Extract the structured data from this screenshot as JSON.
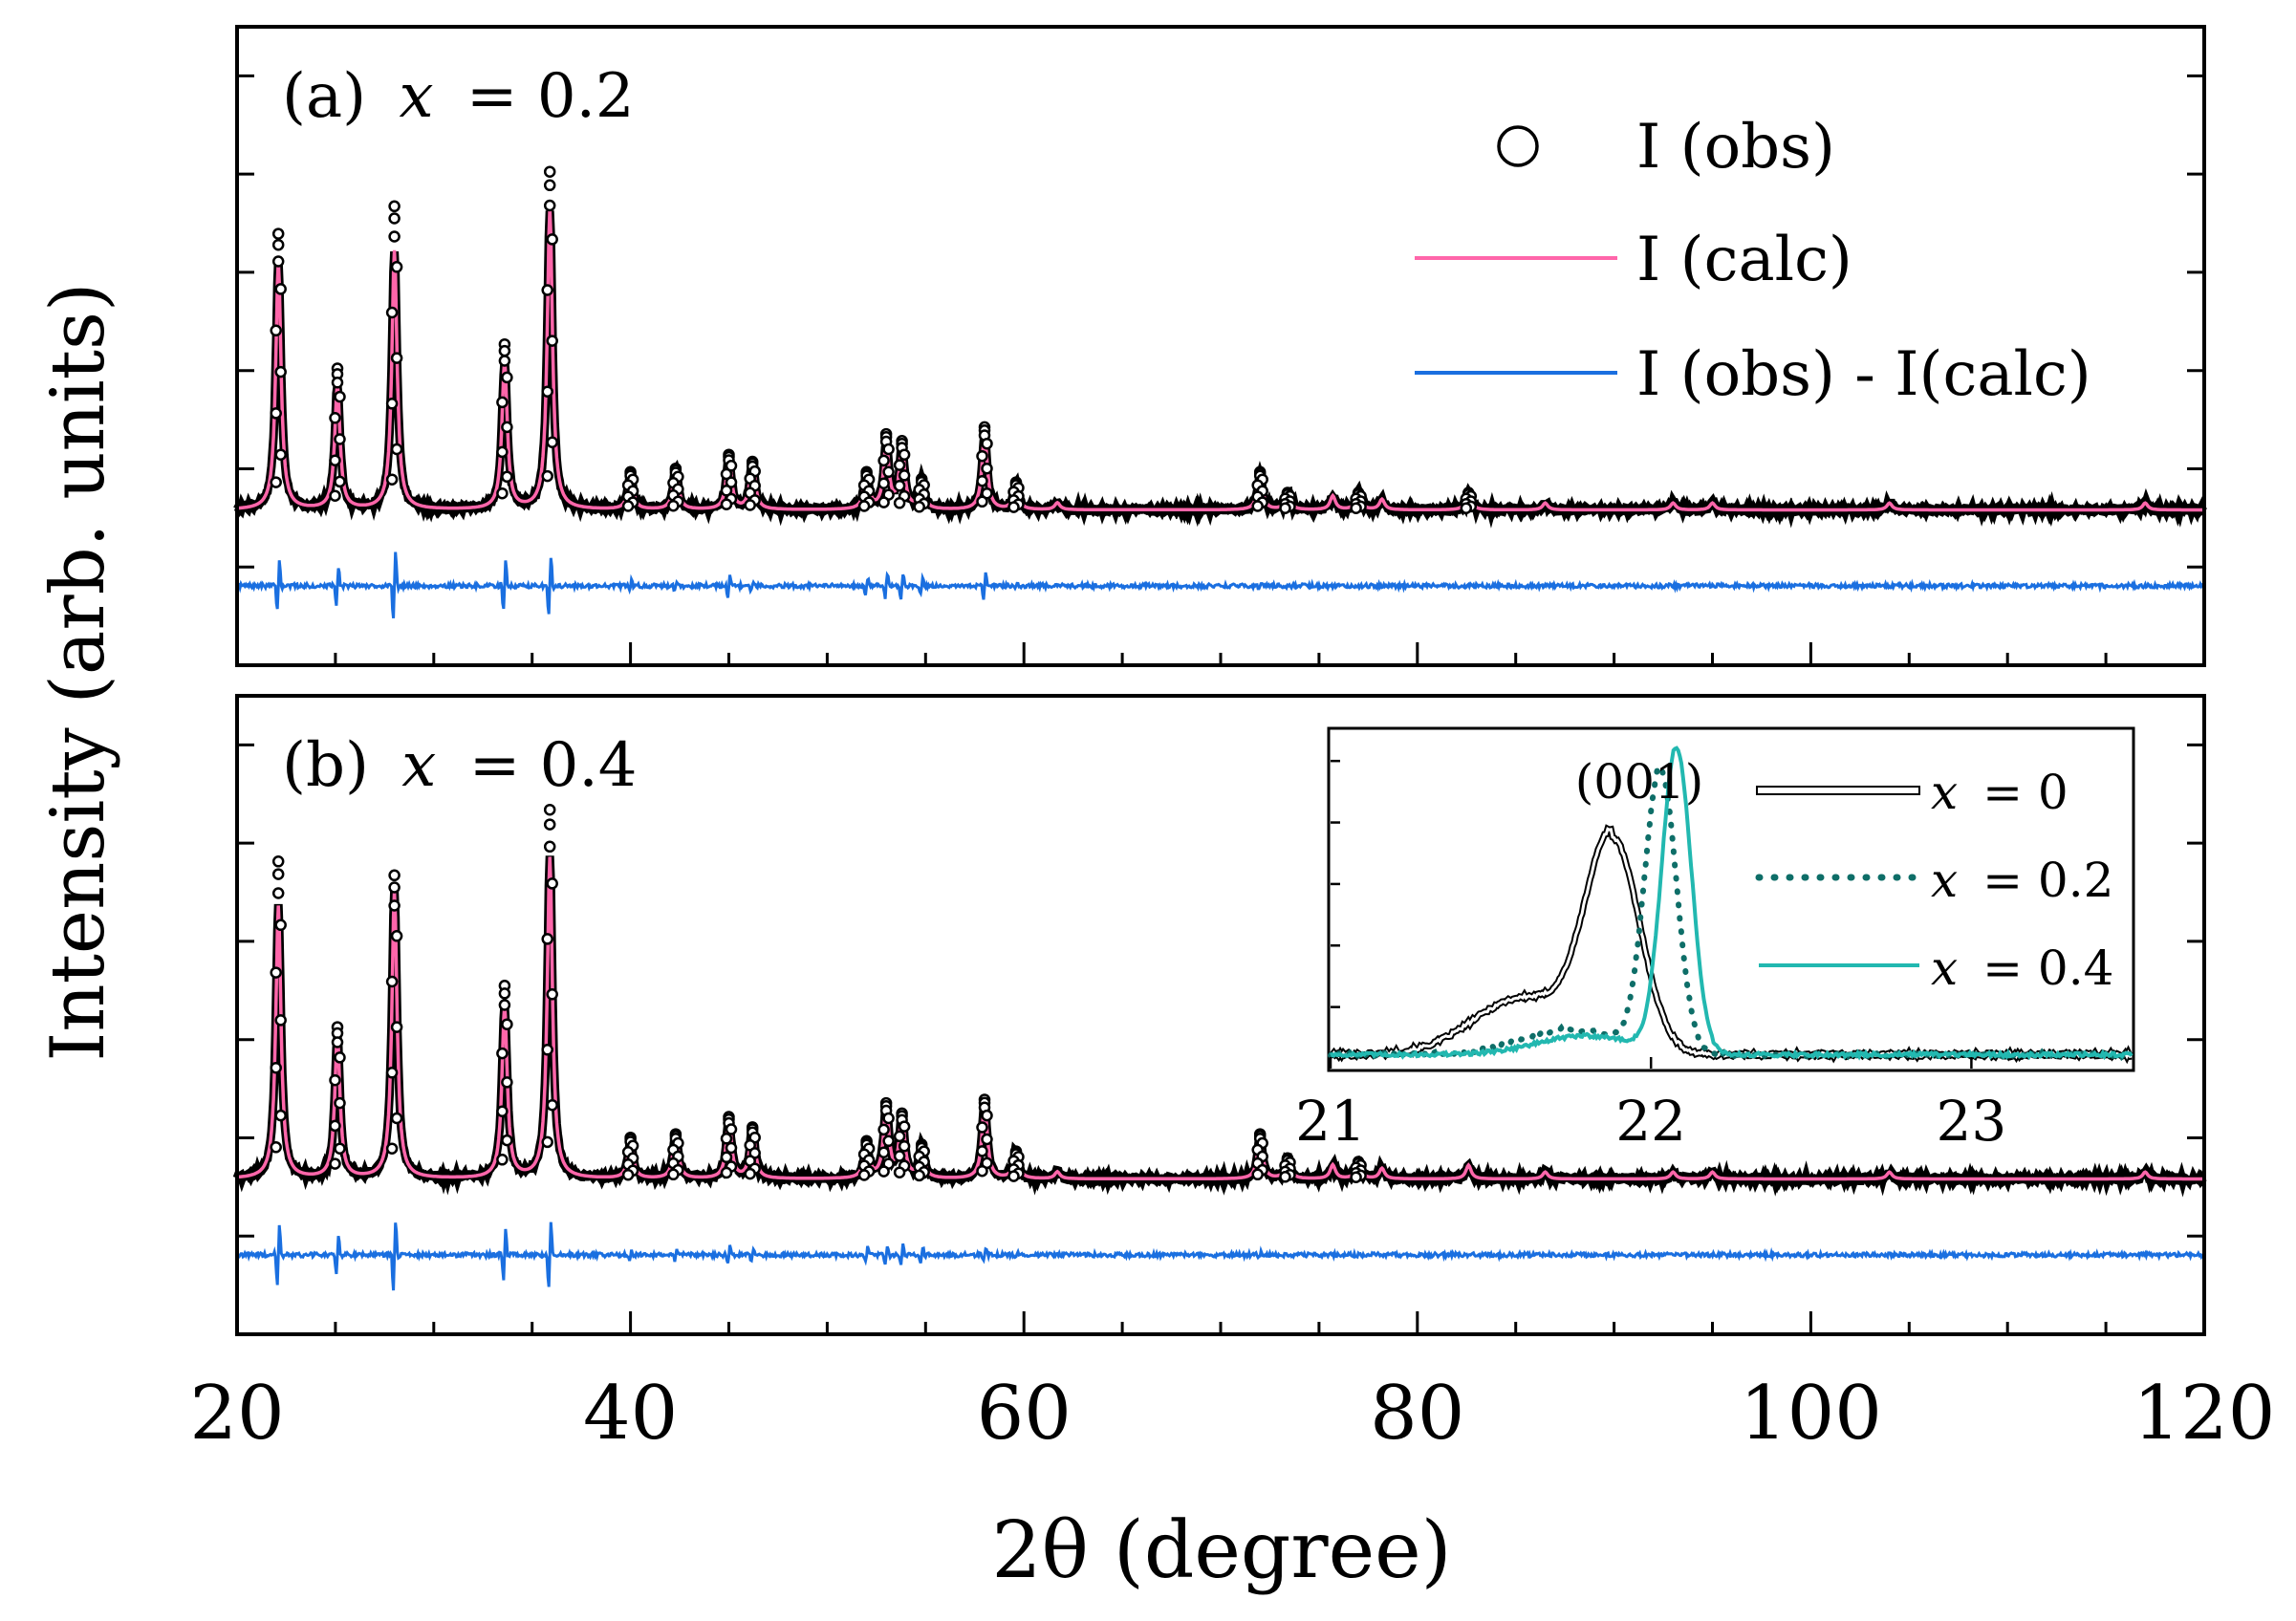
{
  "figure": {
    "xlabel": "2θ (degree)",
    "ylabel": "Intensity (arb. units)"
  },
  "chart_data": [
    {
      "type": "line",
      "panel": "a",
      "title": "(a) x = 0.2",
      "title_prefix": "(a)",
      "title_var": "x",
      "title_rest": "= 0.2",
      "xlim": [
        20,
        120
      ],
      "x_ticks": [
        20,
        40,
        60,
        80,
        100,
        120
      ],
      "x_ticks_minor_step": 5,
      "ylabel": "Intensity (arb. units)",
      "y_tick_count": 6,
      "baseline": 0,
      "diff_offset": -0.22,
      "ylim": [
        -0.45,
        1.4
      ],
      "legend": [
        {
          "label": "I (obs)",
          "marker": "open-circle",
          "color": "#000000"
        },
        {
          "label": "I (calc)",
          "marker": "line",
          "color": "#ff66aa"
        },
        {
          "label": "I (obs) - I(calc)",
          "marker": "line",
          "color": "#1a6fe0"
        }
      ],
      "peaks": [
        {
          "x": 22.1,
          "calc": 0.72,
          "obs": 0.8,
          "diff": 0.1
        },
        {
          "x": 25.1,
          "calc": 0.36,
          "obs": 0.41,
          "diff": 0.08
        },
        {
          "x": 28.0,
          "calc": 0.75,
          "obs": 0.88,
          "diff": 0.14
        },
        {
          "x": 33.6,
          "calc": 0.43,
          "obs": 0.48,
          "diff": 0.1
        },
        {
          "x": 35.9,
          "calc": 0.87,
          "obs": 0.98,
          "diff": 0.12
        },
        {
          "x": 40.0,
          "calc": 0.1,
          "obs": 0.11,
          "diff": 0.02
        },
        {
          "x": 42.3,
          "calc": 0.12,
          "obs": 0.12,
          "diff": 0.02
        },
        {
          "x": 45.0,
          "calc": 0.15,
          "obs": 0.16,
          "diff": 0.05
        },
        {
          "x": 46.2,
          "calc": 0.14,
          "obs": 0.14,
          "diff": 0.02
        },
        {
          "x": 52.0,
          "calc": 0.1,
          "obs": 0.11,
          "diff": 0.03
        },
        {
          "x": 53.0,
          "calc": 0.19,
          "obs": 0.22,
          "diff": 0.05
        },
        {
          "x": 53.8,
          "calc": 0.18,
          "obs": 0.2,
          "diff": 0.05
        },
        {
          "x": 54.8,
          "calc": 0.08,
          "obs": 0.09,
          "diff": 0.03
        },
        {
          "x": 58.0,
          "calc": 0.22,
          "obs": 0.24,
          "diff": 0.05
        },
        {
          "x": 59.6,
          "calc": 0.07,
          "obs": 0.08,
          "diff": 0.01
        },
        {
          "x": 61.7,
          "calc": 0.02,
          "obs": 0.02,
          "diff": 0.0
        },
        {
          "x": 72.0,
          "calc": 0.1,
          "obs": 0.11,
          "diff": 0.01
        },
        {
          "x": 73.4,
          "calc": 0.05,
          "obs": 0.05,
          "diff": 0.0
        },
        {
          "x": 75.7,
          "calc": 0.04,
          "obs": 0.04,
          "diff": 0.0
        },
        {
          "x": 77.0,
          "calc": 0.05,
          "obs": 0.05,
          "diff": 0.0
        },
        {
          "x": 78.2,
          "calc": 0.03,
          "obs": 0.03,
          "diff": 0.0
        },
        {
          "x": 82.6,
          "calc": 0.05,
          "obs": 0.05,
          "diff": 0.0
        },
        {
          "x": 86.5,
          "calc": 0.02,
          "obs": 0.02,
          "diff": 0.0
        },
        {
          "x": 93.0,
          "calc": 0.02,
          "obs": 0.03,
          "diff": 0.0
        },
        {
          "x": 95.0,
          "calc": 0.02,
          "obs": 0.02,
          "diff": 0.0
        },
        {
          "x": 104.0,
          "calc": 0.02,
          "obs": 0.02,
          "diff": 0.0
        },
        {
          "x": 117.0,
          "calc": 0.02,
          "obs": 0.02,
          "diff": 0.0
        }
      ],
      "inset": null
    },
    {
      "type": "line",
      "panel": "b",
      "title": "(b) x = 0.4",
      "title_prefix": "(b)",
      "title_var": "x",
      "title_rest": "= 0.4",
      "xlim": [
        20,
        120
      ],
      "x_ticks": [
        20,
        40,
        60,
        80,
        100,
        120
      ],
      "x_ticks_minor_step": 5,
      "y_tick_count": 6,
      "baseline": 0,
      "diff_offset": -0.22,
      "ylim": [
        -0.45,
        1.4
      ],
      "peaks": [
        {
          "x": 22.1,
          "calc": 0.79,
          "obs": 0.92,
          "diff": 0.12
        },
        {
          "x": 25.1,
          "calc": 0.41,
          "obs": 0.44,
          "diff": 0.08
        },
        {
          "x": 28.0,
          "calc": 0.83,
          "obs": 0.88,
          "diff": 0.14
        },
        {
          "x": 33.6,
          "calc": 0.5,
          "obs": 0.56,
          "diff": 0.1
        },
        {
          "x": 35.9,
          "calc": 0.93,
          "obs": 1.07,
          "diff": 0.13
        },
        {
          "x": 40.0,
          "calc": 0.11,
          "obs": 0.12,
          "diff": 0.02
        },
        {
          "x": 42.3,
          "calc": 0.13,
          "obs": 0.13,
          "diff": 0.02
        },
        {
          "x": 45.0,
          "calc": 0.17,
          "obs": 0.18,
          "diff": 0.04
        },
        {
          "x": 46.2,
          "calc": 0.15,
          "obs": 0.15,
          "diff": 0.02
        },
        {
          "x": 52.0,
          "calc": 0.1,
          "obs": 0.11,
          "diff": 0.03
        },
        {
          "x": 53.0,
          "calc": 0.21,
          "obs": 0.22,
          "diff": 0.04
        },
        {
          "x": 53.8,
          "calc": 0.18,
          "obs": 0.19,
          "diff": 0.04
        },
        {
          "x": 54.8,
          "calc": 0.09,
          "obs": 0.1,
          "diff": 0.03
        },
        {
          "x": 58.0,
          "calc": 0.22,
          "obs": 0.23,
          "diff": 0.03
        },
        {
          "x": 59.6,
          "calc": 0.08,
          "obs": 0.08,
          "diff": 0.01
        },
        {
          "x": 61.7,
          "calc": 0.02,
          "obs": 0.02,
          "diff": 0.0
        },
        {
          "x": 72.0,
          "calc": 0.12,
          "obs": 0.13,
          "diff": 0.01
        },
        {
          "x": 73.4,
          "calc": 0.06,
          "obs": 0.06,
          "diff": 0.0
        },
        {
          "x": 75.7,
          "calc": 0.04,
          "obs": 0.04,
          "diff": 0.0
        },
        {
          "x": 77.0,
          "calc": 0.05,
          "obs": 0.05,
          "diff": 0.0
        },
        {
          "x": 78.2,
          "calc": 0.03,
          "obs": 0.03,
          "diff": 0.0
        },
        {
          "x": 82.6,
          "calc": 0.04,
          "obs": 0.04,
          "diff": 0.0
        },
        {
          "x": 86.5,
          "calc": 0.02,
          "obs": 0.02,
          "diff": 0.0
        },
        {
          "x": 93.0,
          "calc": 0.02,
          "obs": 0.02,
          "diff": 0.0
        },
        {
          "x": 95.0,
          "calc": 0.02,
          "obs": 0.02,
          "diff": 0.0
        },
        {
          "x": 104.0,
          "calc": 0.02,
          "obs": 0.02,
          "diff": 0.0
        },
        {
          "x": 117.0,
          "calc": 0.02,
          "obs": 0.02,
          "diff": 0.0
        }
      ],
      "inset": {
        "type": "line",
        "annotation": "(001)",
        "xlim": [
          21,
          23.5
        ],
        "x_ticks": [
          21,
          22,
          23
        ],
        "ylim": [
          0,
          1.05
        ],
        "series": [
          {
            "name": "x = 0",
            "var": "x",
            "rest": "= 0",
            "style": "double",
            "color": "#000000",
            "center": 21.88,
            "height": 0.68,
            "width": 0.12,
            "shoulder": 0.18
          },
          {
            "name": "x = 0.2",
            "var": "x",
            "rest": "= 0.2",
            "style": "dotted",
            "color": "#0e6e68",
            "center": 22.03,
            "height": 0.9,
            "width": 0.07,
            "shoulder": 0.08
          },
          {
            "name": "x = 0.4",
            "var": "x",
            "rest": "= 0.4",
            "style": "solid",
            "color": "#22b8b0",
            "center": 22.08,
            "height": 0.97,
            "width": 0.065,
            "shoulder": 0.06
          }
        ]
      }
    }
  ]
}
